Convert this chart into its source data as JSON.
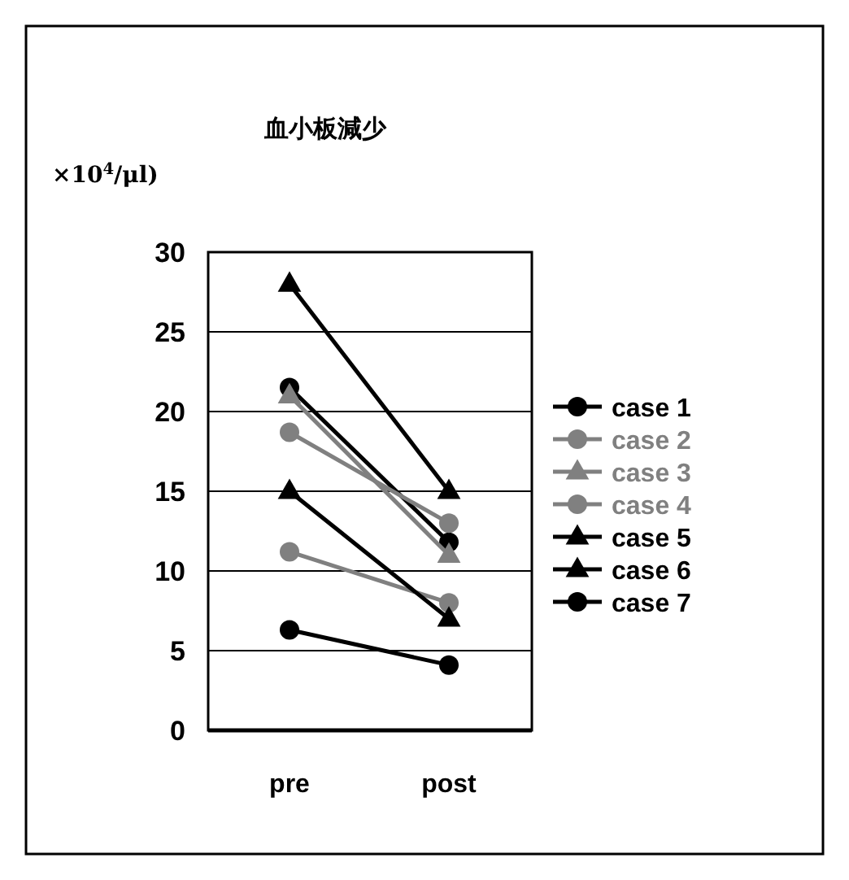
{
  "chart_data": {
    "type": "line",
    "title": "血小板減少",
    "ylabel": "×10$^{4}$/μl)",
    "categories": [
      "pre",
      "post"
    ],
    "ylim": [
      0,
      30
    ],
    "yticks": [
      0,
      5,
      10,
      15,
      20,
      25,
      30
    ],
    "grid": "y",
    "legend": "right",
    "series": [
      {
        "name": "case 1",
        "color": "#000000",
        "marker": "circle",
        "values": [
          21.5,
          11.8
        ]
      },
      {
        "name": "case 2",
        "color": "#808080",
        "marker": "circle",
        "values": [
          18.7,
          13
        ]
      },
      {
        "name": "case 3",
        "color": "#808080",
        "marker": "triangle",
        "values": [
          21,
          11
        ]
      },
      {
        "name": "case 4",
        "color": "#808080",
        "marker": "circle",
        "values": [
          11.2,
          8
        ]
      },
      {
        "name": "case 5",
        "color": "#000000",
        "marker": "triangle",
        "values": [
          28,
          15
        ]
      },
      {
        "name": "case 6",
        "color": "#000000",
        "marker": "triangle",
        "values": [
          15,
          7
        ]
      },
      {
        "name": "case 7",
        "color": "#000000",
        "marker": "circle",
        "values": [
          6.3,
          4.1
        ]
      }
    ]
  }
}
